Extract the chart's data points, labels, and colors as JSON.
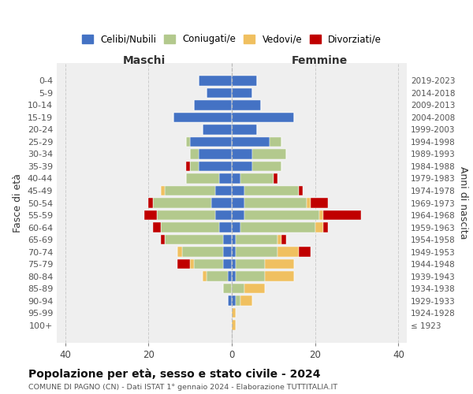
{
  "age_groups": [
    "0-4",
    "5-9",
    "10-14",
    "15-19",
    "20-24",
    "25-29",
    "30-34",
    "35-39",
    "40-44",
    "45-49",
    "50-54",
    "55-59",
    "60-64",
    "65-69",
    "70-74",
    "75-79",
    "80-84",
    "85-89",
    "90-94",
    "95-99",
    "100+"
  ],
  "birth_years": [
    "2019-2023",
    "2014-2018",
    "2009-2013",
    "2004-2008",
    "1999-2003",
    "1994-1998",
    "1989-1993",
    "1984-1988",
    "1979-1983",
    "1974-1978",
    "1969-1973",
    "1964-1968",
    "1959-1963",
    "1954-1958",
    "1949-1953",
    "1944-1948",
    "1939-1943",
    "1934-1938",
    "1929-1933",
    "1924-1928",
    "≤ 1923"
  ],
  "colors": {
    "celibe": "#4472c4",
    "coniugato": "#b3c98d",
    "vedovo": "#f0c060",
    "divorziato": "#c00000"
  },
  "maschi": {
    "celibe": [
      8,
      6,
      9,
      14,
      7,
      10,
      8,
      8,
      3,
      4,
      5,
      4,
      3,
      2,
      2,
      2,
      1,
      0,
      1,
      0,
      0
    ],
    "coniugato": [
      0,
      0,
      0,
      0,
      0,
      1,
      2,
      2,
      8,
      12,
      14,
      14,
      14,
      14,
      10,
      7,
      5,
      2,
      0,
      0,
      0
    ],
    "vedovo": [
      0,
      0,
      0,
      0,
      0,
      0,
      0,
      0,
      0,
      1,
      0,
      0,
      0,
      0,
      1,
      1,
      1,
      0,
      0,
      0,
      0
    ],
    "divorziato": [
      0,
      0,
      0,
      0,
      0,
      0,
      0,
      1,
      0,
      0,
      1,
      3,
      2,
      1,
      0,
      3,
      0,
      0,
      0,
      0,
      0
    ]
  },
  "femmine": {
    "celibe": [
      6,
      5,
      7,
      15,
      6,
      9,
      5,
      5,
      2,
      3,
      3,
      3,
      2,
      1,
      1,
      1,
      1,
      0,
      1,
      0,
      0
    ],
    "coniugato": [
      0,
      0,
      0,
      0,
      0,
      3,
      8,
      7,
      8,
      13,
      15,
      18,
      18,
      10,
      10,
      7,
      7,
      3,
      1,
      0,
      0
    ],
    "vedovo": [
      0,
      0,
      0,
      0,
      0,
      0,
      0,
      0,
      0,
      0,
      1,
      1,
      2,
      1,
      5,
      7,
      7,
      5,
      3,
      1,
      1
    ],
    "divorziato": [
      0,
      0,
      0,
      0,
      0,
      0,
      0,
      0,
      1,
      1,
      4,
      9,
      1,
      1,
      3,
      0,
      0,
      0,
      0,
      0,
      0
    ]
  },
  "xlim": [
    -42,
    42
  ],
  "xticks": [
    -40,
    -20,
    0,
    20,
    40
  ],
  "xticklabels": [
    "40",
    "20",
    "0",
    "20",
    "40"
  ],
  "title": "Popolazione per età, sesso e stato civile - 2024",
  "subtitle": "COMUNE DI PAGNO (CN) - Dati ISTAT 1° gennaio 2024 - Elaborazione TUTTITALIA.IT",
  "ylabel_left": "Fasce di età",
  "ylabel_right": "Anni di nascita",
  "label_maschi": "Maschi",
  "label_femmine": "Femmine",
  "legend_labels": [
    "Celibi/Nubili",
    "Coniugati/e",
    "Vedovi/e",
    "Divorziati/e"
  ],
  "background_color": "#efefef"
}
